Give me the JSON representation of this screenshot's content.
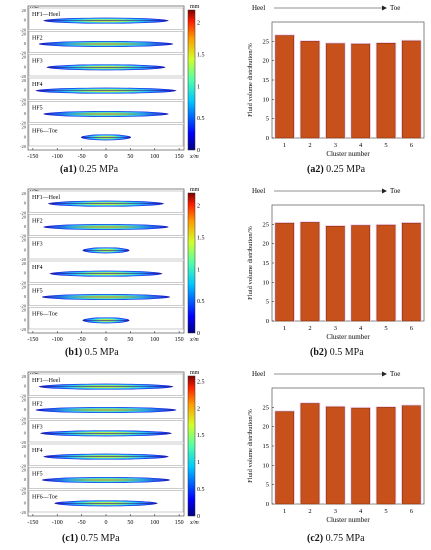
{
  "chart_data": [
    {
      "panel_id": "(a1)",
      "pressure_label": "0.25 MPa",
      "type": "heatmap",
      "ylabel": "y/m",
      "xlabel": "x/m",
      "colorbar_unit": "mm",
      "colorbar_ticks": [
        "0",
        "0.5",
        "1",
        "1.5",
        "2"
      ],
      "colorbar_max": 2.2,
      "x_ticks": [
        "-150",
        "-100",
        "-50",
        "0",
        "50",
        "100",
        "150"
      ],
      "y_ticks": [
        "20",
        "0",
        "-20"
      ],
      "fractures": [
        {
          "label": "HF1—Heel",
          "extent": 0.8
        },
        {
          "label": "HF2",
          "extent": 0.86
        },
        {
          "label": "HF3",
          "extent": 0.76
        },
        {
          "label": "HF4",
          "extent": 0.9
        },
        {
          "label": "HF5",
          "extent": 0.8
        },
        {
          "label": "HF6—Toe",
          "extent": 0.32
        }
      ]
    },
    {
      "panel_id": "(a2)",
      "pressure_label": "0.25 MPa",
      "type": "bar",
      "xlabel": "Cluster number",
      "ylabel": "Fluid volume distribution/%",
      "heel_label": "Heel",
      "toe_label": "Toe",
      "categories": [
        "1",
        "2",
        "3",
        "4",
        "5",
        "6"
      ],
      "values": [
        26.5,
        25.0,
        24.4,
        24.3,
        24.5,
        25.1
      ],
      "ylim": [
        0,
        30
      ],
      "y_ticks": [
        "0",
        "5",
        "10",
        "15",
        "20",
        "25"
      ],
      "bar_color": "#c8511b"
    },
    {
      "panel_id": "(b1)",
      "pressure_label": "0.5 MPa",
      "type": "heatmap",
      "ylabel": "y/m",
      "xlabel": "x/m",
      "colorbar_unit": "mm",
      "colorbar_ticks": [
        "0",
        "0.5",
        "1",
        "1.5",
        "2"
      ],
      "colorbar_max": 2.2,
      "x_ticks": [
        "-150",
        "-100",
        "-50",
        "0",
        "50",
        "100",
        "150"
      ],
      "y_ticks": [
        "20",
        "0",
        "-20"
      ],
      "fractures": [
        {
          "label": "HF1—Heel",
          "extent": 0.74
        },
        {
          "label": "HF2",
          "extent": 0.8
        },
        {
          "label": "HF3",
          "extent": 0.3
        },
        {
          "label": "HF4",
          "extent": 0.72
        },
        {
          "label": "HF5",
          "extent": 0.82
        },
        {
          "label": "HF6—Toe",
          "extent": 0.3
        }
      ]
    },
    {
      "panel_id": "(b2)",
      "pressure_label": "0.5 MPa",
      "type": "bar",
      "xlabel": "Cluster number",
      "ylabel": "Fluid volume distribution/%",
      "heel_label": "Heel",
      "toe_label": "Toe",
      "categories": [
        "1",
        "2",
        "3",
        "4",
        "5",
        "6"
      ],
      "values": [
        25.3,
        25.5,
        24.5,
        24.7,
        24.8,
        25.3
      ],
      "ylim": [
        0,
        30
      ],
      "y_ticks": [
        "0",
        "5",
        "10",
        "15",
        "20",
        "25"
      ],
      "bar_color": "#c8511b"
    },
    {
      "panel_id": "(c1)",
      "pressure_label": "0.75 MPa",
      "type": "heatmap",
      "ylabel": "y/m",
      "xlabel": "x/m",
      "colorbar_unit": "mm",
      "colorbar_ticks": [
        "0",
        "0.5",
        "1",
        "1.5",
        "2",
        "2.5"
      ],
      "colorbar_max": 2.6,
      "x_ticks": [
        "-150",
        "-100",
        "-50",
        "0",
        "50",
        "100",
        "150"
      ],
      "y_ticks": [
        "20",
        "0",
        "-20"
      ],
      "fractures": [
        {
          "label": "HF1—Heel",
          "extent": 0.86
        },
        {
          "label": "HF2",
          "extent": 0.9
        },
        {
          "label": "HF3",
          "extent": 0.84
        },
        {
          "label": "HF4",
          "extent": 0.8
        },
        {
          "label": "HF5",
          "extent": 0.82
        },
        {
          "label": "HF6—Toe",
          "extent": 0.66
        }
      ]
    },
    {
      "panel_id": "(c2)",
      "pressure_label": "0.75 MPa",
      "type": "bar",
      "xlabel": "Cluster number",
      "ylabel": "Fluid volume distribution/%",
      "heel_label": "Heel",
      "toe_label": "Toe",
      "categories": [
        "1",
        "2",
        "3",
        "4",
        "5",
        "6"
      ],
      "values": [
        23.9,
        26.0,
        25.1,
        24.8,
        25.0,
        25.4
      ],
      "ylim": [
        0,
        30
      ],
      "y_ticks": [
        "0",
        "5",
        "10",
        "15",
        "20",
        "25"
      ],
      "bar_color": "#c8511b"
    }
  ]
}
